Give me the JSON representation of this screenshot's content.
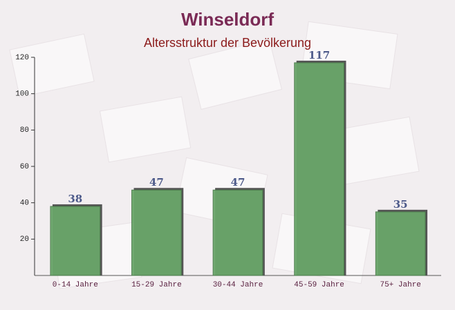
{
  "chart_data": {
    "type": "bar",
    "title": "Winseldorf",
    "subtitle": "Altersstruktur der Bevölkerung",
    "categories": [
      "0-14 Jahre",
      "15-29 Jahre",
      "30-44 Jahre",
      "45-59 Jahre",
      "75+ Jahre"
    ],
    "values": [
      38,
      47,
      47,
      117,
      35
    ],
    "color": "#6aa66a",
    "ylim": [
      0,
      120
    ],
    "yticks": [
      20,
      40,
      60,
      80,
      100,
      120
    ],
    "grid": false
  }
}
